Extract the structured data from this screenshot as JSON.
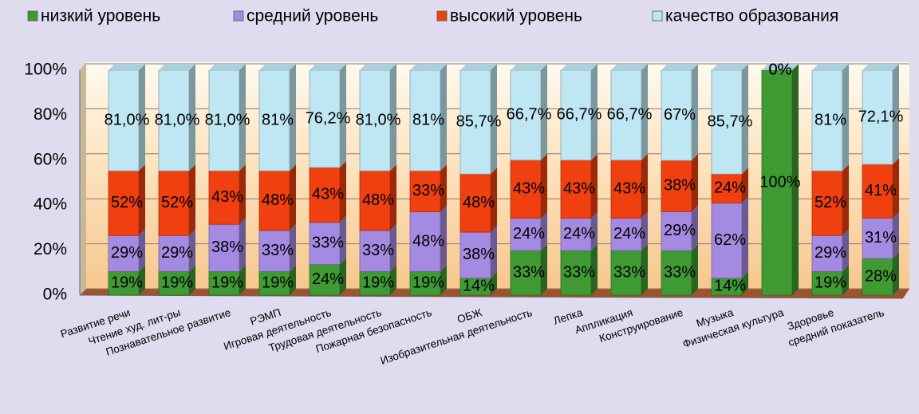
{
  "chart_data": {
    "type": "bar",
    "stacking": "percent",
    "categories": [
      "Развитие речи",
      "Чтение худ. лит-ры",
      "Познавательное развитие",
      "РЭМП",
      "Игровая деятельность",
      "Трудовая деятельность",
      "Пожарная  безопасность",
      "ОБЖ",
      "Изобразительная деятельность",
      "Лепка",
      "Аппликация",
      "Конструирование",
      "Музыка",
      "Физическая культура",
      "Здоровье",
      "средний показатель"
    ],
    "series": [
      {
        "name": "низкий уровень",
        "color": "#3f9a33",
        "values": [
          19,
          19,
          19,
          19,
          24,
          19,
          19,
          14,
          33,
          33,
          33,
          33,
          14,
          100,
          19,
          28
        ],
        "value_labels": [
          "19%",
          "19%",
          "19%",
          "19%",
          "24%",
          "19%",
          "19%",
          "14%",
          "33%",
          "33%",
          "33%",
          "33%",
          "14%",
          "100%",
          "19%",
          "28%"
        ]
      },
      {
        "name": "средний уровень",
        "color": "#a48ae0",
        "values": [
          29,
          29,
          38,
          33,
          33,
          33,
          48,
          38,
          24,
          24,
          24,
          29,
          62,
          0,
          29,
          31
        ],
        "value_labels": [
          "29%",
          "29%",
          "38%",
          "33%",
          "33%",
          "33%",
          "48%",
          "38%",
          "24%",
          "24%",
          "24%",
          "29%",
          "62%",
          "0%",
          "29%",
          "31%"
        ]
      },
      {
        "name": "высокий уровень",
        "color": "#f04010",
        "values": [
          52,
          52,
          43,
          48,
          43,
          48,
          33,
          48,
          43,
          43,
          43,
          38,
          24,
          0,
          52,
          41
        ],
        "value_labels": [
          "52%",
          "52%",
          "43%",
          "48%",
          "43%",
          "48%",
          "33%",
          "48%",
          "43%",
          "43%",
          "43%",
          "38%",
          "24%",
          "0%",
          "52%",
          "41%"
        ]
      },
      {
        "name": "качество образования",
        "color": "#bfe6f3",
        "values": [
          81,
          81,
          81,
          81,
          76.2,
          81,
          81,
          85.7,
          66.7,
          66.7,
          66.7,
          67,
          85.7,
          0,
          81,
          72.1
        ],
        "value_labels": [
          "81,0%",
          "81,0%",
          "81,0%",
          "81%",
          "76,2%",
          "81,0%",
          "81%",
          "85,7%",
          "66,7%",
          "66,7%",
          "66,7%",
          "67%",
          "85,7%",
          "0%",
          "81%",
          "72,1%"
        ]
      }
    ],
    "ylim": [
      0,
      100
    ],
    "yticks": [
      {
        "value": 0,
        "label": "0%"
      },
      {
        "value": 20,
        "label": "20%"
      },
      {
        "value": 40,
        "label": "40%"
      },
      {
        "value": 60,
        "label": "60%"
      },
      {
        "value": 80,
        "label": "80%"
      },
      {
        "value": 100,
        "label": "100%"
      }
    ],
    "grid": true,
    "legend": "top"
  }
}
